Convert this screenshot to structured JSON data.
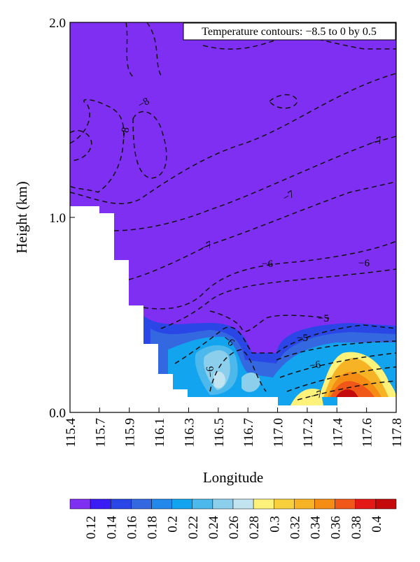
{
  "chart_data": {
    "type": "contour",
    "annotation": "Temperature contours: −8.5 to 0 by 0.5",
    "xlabel": "Longitude",
    "ylabel": "Height (km)",
    "xticks": [
      115.4,
      115.7,
      115.9,
      116.1,
      116.3,
      116.5,
      116.7,
      {
        "value": 117,
        "label": "117.0"
      },
      117.2,
      117.4,
      117.6,
      117.8
    ],
    "ylim": [
      0,
      2
    ],
    "yticks": [
      {
        "value": 0,
        "label": "0.0"
      },
      {
        "value": 1,
        "label": "1.0"
      },
      {
        "value": 2,
        "label": "2.0"
      }
    ],
    "contour_labels": [
      "−8",
      "−8",
      "−7",
      "−7",
      "−7",
      "−6",
      "−6",
      "−5",
      "−5",
      "−6",
      "−6",
      "−6",
      "−7"
    ],
    "colorbar": {
      "colors": [
        "#7f2ff2",
        "#3a1cf5",
        "#2a46e6",
        "#3468e0",
        "#2288ec",
        "#12a4ee",
        "#4cb8ec",
        "#8ccfec",
        "#c2e4f0",
        "#fff27a",
        "#f8cf3c",
        "#f7b326",
        "#f58c14",
        "#f0581a",
        "#e51818",
        "#c40a0a"
      ],
      "ticks": [
        0.12,
        0.14,
        0.16,
        0.18,
        0.2,
        0.22,
        0.24,
        0.26,
        0.28,
        0.3,
        0.32,
        0.34,
        0.36,
        0.38,
        0.4
      ]
    }
  }
}
